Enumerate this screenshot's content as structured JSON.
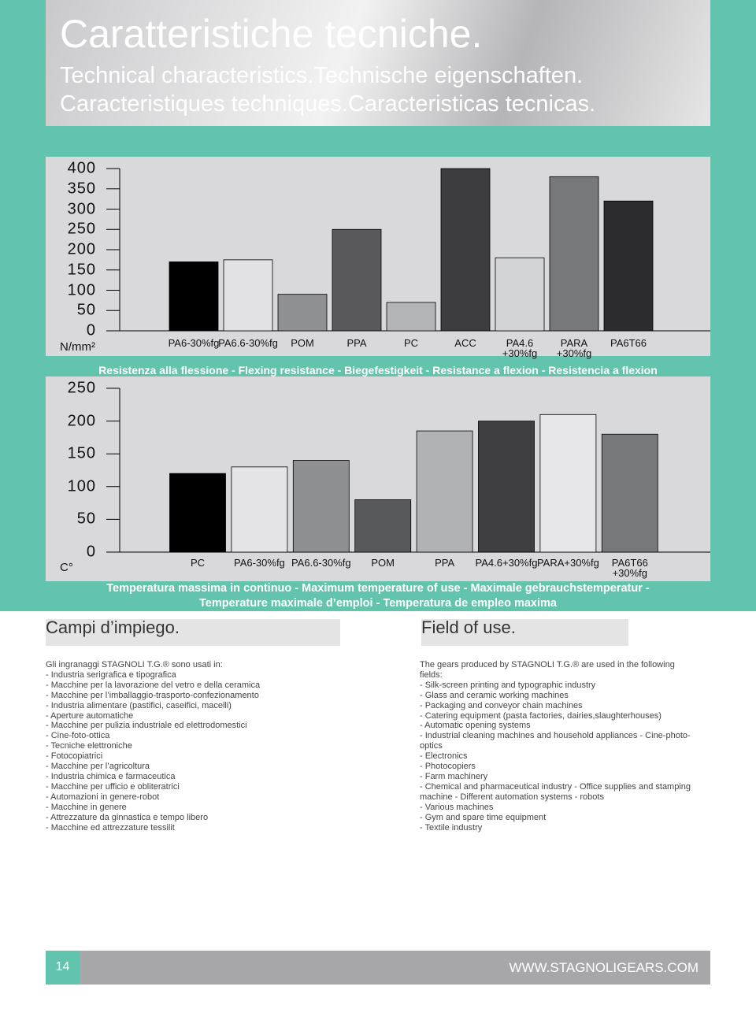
{
  "header": {
    "title": "Caratteristiche tecniche.",
    "subtitle_lines": [
      "Technical characteristics.Technische  eigenschaften.",
      "Caracteristiques techniques.Caracteristicas tecnicas."
    ]
  },
  "chart_data": [
    {
      "type": "bar",
      "unit_label": "N/mm²",
      "caption": "Resistenza alla flessione - Flexing resistance - Biegefestigkeit - Resistance a flexion - Resistencia a flexion",
      "categories": [
        "PA6-30%fg",
        "PA6.6-30%fg",
        "POM",
        "PPA",
        "PC",
        "ACC",
        "PA4.6\n+30%fg",
        "PARA\n+30%fg",
        "PA6T66"
      ],
      "values": [
        170,
        175,
        90,
        250,
        70,
        400,
        180,
        380,
        320
      ],
      "colors": [
        "#000000",
        "#e2e2e4",
        "#8f9092",
        "#59595b",
        "#b3b4b6",
        "#3d3d3f",
        "#d3d4d6",
        "#77787a",
        "#2c2c2e"
      ],
      "ylim": [
        0,
        400
      ],
      "yticks": [
        0,
        50,
        100,
        150,
        200,
        250,
        300,
        350,
        400
      ]
    },
    {
      "type": "bar",
      "unit_label": "C°",
      "caption": "Temperatura massima in continuo - Maximum temperature of use - Maximale gebrauchstemperatur -\nTemperature maximale d’emploi - Temperatura de empleo maxima",
      "categories": [
        "PC",
        "PA6-30%fg",
        "PA6.6-30%fg",
        "POM",
        "PPA",
        "PA4.6+30%fg",
        "PARA+30%fg",
        "PA6T66\n+30%fg"
      ],
      "values": [
        120,
        130,
        140,
        80,
        185,
        200,
        210,
        180
      ],
      "colors": [
        "#000000",
        "#e4e4e6",
        "#8e8f91",
        "#58595b",
        "#b1b2b4",
        "#3f3f41",
        "#e6e6e8",
        "#77787a"
      ],
      "ylim": [
        0,
        250
      ],
      "yticks": [
        0,
        50,
        100,
        150,
        200,
        250
      ]
    }
  ],
  "sections": {
    "it_heading": "Campi d’impiego.",
    "en_heading": "Field of use.",
    "it_lines": [
      "Gli ingranaggi STAGNOLI T.G.® sono usati in:",
      "- Industria serigrafica e tipografica",
      "- Macchine per la lavorazione del vetro e della ceramica",
      "- Macchine per l’imballaggio-trasporto-confezionamento",
      "- Industria alimentare (pastifici, caseifici, macelli)",
      "- Aperture automatiche",
      "- Macchine per pulizia industriale ed elettrodomestici",
      "- Cine-foto-ottica",
      "- Tecniche elettroniche",
      "- Fotocopiatrici",
      "- Macchine per l’agricoltura",
      "- Industria chimica e farmaceutica",
      "- Macchine per ufficio e obliteratrici",
      "- Automazioni in genere-robot",
      "- Macchine in genere",
      "- Attrezzature da ginnastica e tempo libero",
      "- Macchine ed attrezzature tessilit"
    ],
    "en_lines": [
      "The gears produced by STAGNOLI T.G.® are used in the following",
      "fields:",
      "- Silk-screen printing and typographic industry",
      "- Glass and ceramic working machines",
      "- Packaging and conveyor chain machines",
      "- Catering equipment (pasta factories, dairies,slaughterhouses)",
      "- Automatic opening systems",
      "- Industrial cleaning machines and household appliances - Cine-photo-",
      "optics",
      "- Electronics",
      "- Photocopiers",
      "- Farm machinery",
      "- Chemical and pharmaceutical industry - Office supplies and stamping",
      "machine - Different automation systems - robots",
      "- Various machines",
      "- Gym and spare time equipment",
      "- Textile industry"
    ]
  },
  "footer": {
    "page": "14",
    "url": "WWW.STAGNOLIGEARS.COM"
  }
}
